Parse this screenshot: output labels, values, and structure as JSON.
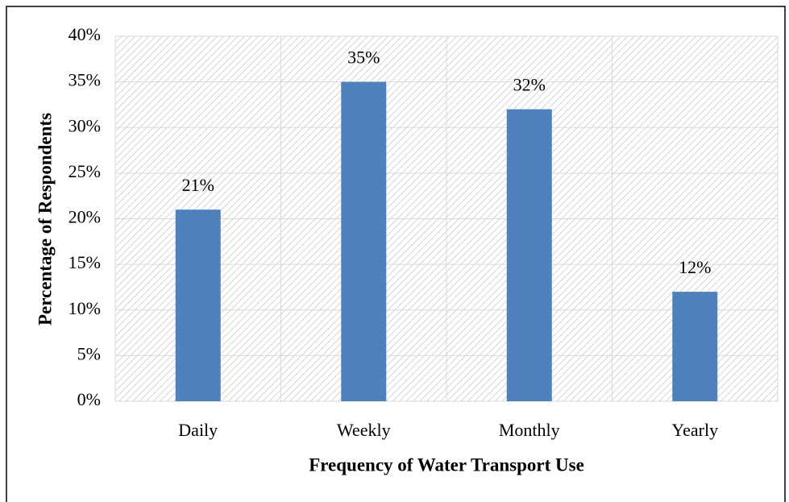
{
  "chart_data": {
    "type": "bar",
    "x_label": "Frequency of Water Transport Use",
    "y_label": "Percentage of Respondents",
    "categories": [
      "Daily",
      "Weekly",
      "Monthly",
      "Yearly"
    ],
    "values": [
      21,
      35,
      32,
      12
    ],
    "value_labels": [
      "21%",
      "35%",
      "32%",
      "12%"
    ],
    "color": "#4f81bd",
    "ylim": [
      0,
      40
    ],
    "yticks": [
      {
        "value": 0,
        "label": "0%"
      },
      {
        "value": 5,
        "label": "5%"
      },
      {
        "value": 10,
        "label": "10%"
      },
      {
        "value": 15,
        "label": "15%"
      },
      {
        "value": 20,
        "label": "20%"
      },
      {
        "value": 25,
        "label": "25%"
      },
      {
        "value": 30,
        "label": "30%"
      },
      {
        "value": 35,
        "label": "35%"
      },
      {
        "value": 40,
        "label": "40%"
      }
    ],
    "grid": true
  }
}
